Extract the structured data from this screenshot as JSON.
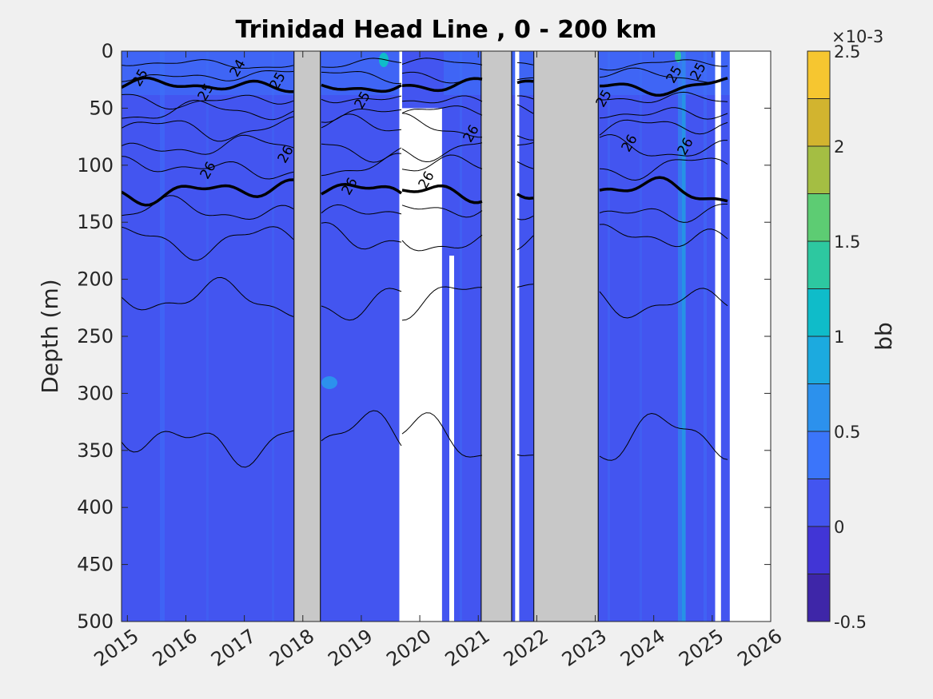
{
  "chart_data": {
    "type": "heatmap",
    "title": "Trinidad Head Line , 0 - 200 km",
    "ylabel": "Depth (m)",
    "xlim": [
      2014.9,
      2026.0
    ],
    "ylim": [
      0,
      500
    ],
    "y_reversed": true,
    "xticks": [
      "2015",
      "2016",
      "2017",
      "2018",
      "2019",
      "2020",
      "2021",
      "2022",
      "2023",
      "2024",
      "2025",
      "2026"
    ],
    "yticks": [
      "0",
      "50",
      "100",
      "150",
      "200",
      "250",
      "300",
      "350",
      "400",
      "450",
      "500"
    ],
    "colorbar": {
      "label": "bb",
      "exponent_label": "×10-3",
      "range": [
        -0.5,
        2.5
      ],
      "ticks": [
        "-0.5",
        "0",
        "0.5",
        "1",
        "1.5",
        "2",
        "2.5"
      ],
      "levels": [
        -0.5,
        -0.25,
        0,
        0.25,
        0.5,
        0.75,
        1.0,
        1.25,
        1.5,
        1.75,
        2.0,
        2.25,
        2.5
      ],
      "colors": [
        "#3e26a8",
        "#4135d6",
        "#4355f0",
        "#3b75fa",
        "#2c91ed",
        "#1caadf",
        "#0fbcc9",
        "#2dc8a0",
        "#5dcc73",
        "#a4be43",
        "#d2b42f",
        "#f6c630"
      ]
    },
    "background_value": 0.1,
    "no_data_periods": [
      [
        2017.85,
        2018.3
      ],
      [
        2021.05,
        2021.57
      ],
      [
        2021.95,
        2023.05
      ]
    ],
    "missing_data_periods": [
      [
        2019.65,
        2020.38
      ],
      [
        2021.63,
        2021.7
      ],
      [
        2025.05,
        2025.15
      ],
      [
        2025.3,
        2026.0
      ]
    ],
    "density_contour_labels": [
      "25",
      "25",
      "24",
      "25",
      "26",
      "26",
      "25",
      "26",
      "26",
      "26",
      "25",
      "26",
      "26",
      "25",
      "25"
    ],
    "bold_isopycnals": [
      25,
      26
    ]
  }
}
